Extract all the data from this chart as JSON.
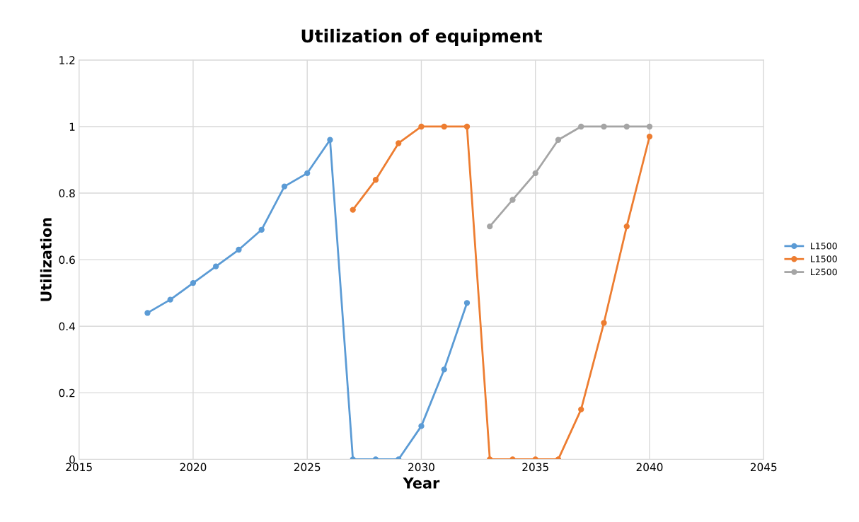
{
  "chart_data": {
    "type": "line",
    "title": "Utilization of equipment",
    "xlabel": "Year",
    "ylabel": "Utilization",
    "xlim": [
      2015,
      2045
    ],
    "xticks": [
      2015,
      2020,
      2025,
      2030,
      2035,
      2040,
      2045
    ],
    "ylim": [
      0,
      1.2
    ],
    "yticks": [
      0,
      0.2,
      0.4,
      0.6,
      0.8,
      1,
      1.2
    ],
    "grid": true,
    "legend": "right",
    "marker": "circle",
    "line_style": "solid",
    "series": [
      {
        "name": "L1500",
        "color": "#5b9bd5",
        "x": [
          2018,
          2019,
          2020,
          2021,
          2022,
          2023,
          2024,
          2025,
          2026,
          2027,
          2028,
          2029,
          2030,
          2031,
          2032
        ],
        "values": [
          0.44,
          0.48,
          0.53,
          0.58,
          0.63,
          0.69,
          0.82,
          0.86,
          0.96,
          0,
          0,
          0,
          0.1,
          0.27,
          0.47
        ]
      },
      {
        "name": "L1500",
        "color": "#ed7d31",
        "x": [
          2027,
          2028,
          2029,
          2030,
          2031,
          2032,
          2033,
          2034,
          2035,
          2036,
          2037,
          2038,
          2039,
          2040
        ],
        "values": [
          0.75,
          0.84,
          0.95,
          1,
          1,
          1,
          0,
          0,
          0,
          0,
          0.15,
          0.41,
          0.7,
          0.97
        ]
      },
      {
        "name": "L2500",
        "color": "#a5a5a5",
        "x": [
          2033,
          2034,
          2035,
          2036,
          2037,
          2038,
          2039,
          2040
        ],
        "values": [
          0.7,
          0.78,
          0.86,
          0.96,
          1,
          1,
          1,
          1
        ]
      }
    ]
  }
}
